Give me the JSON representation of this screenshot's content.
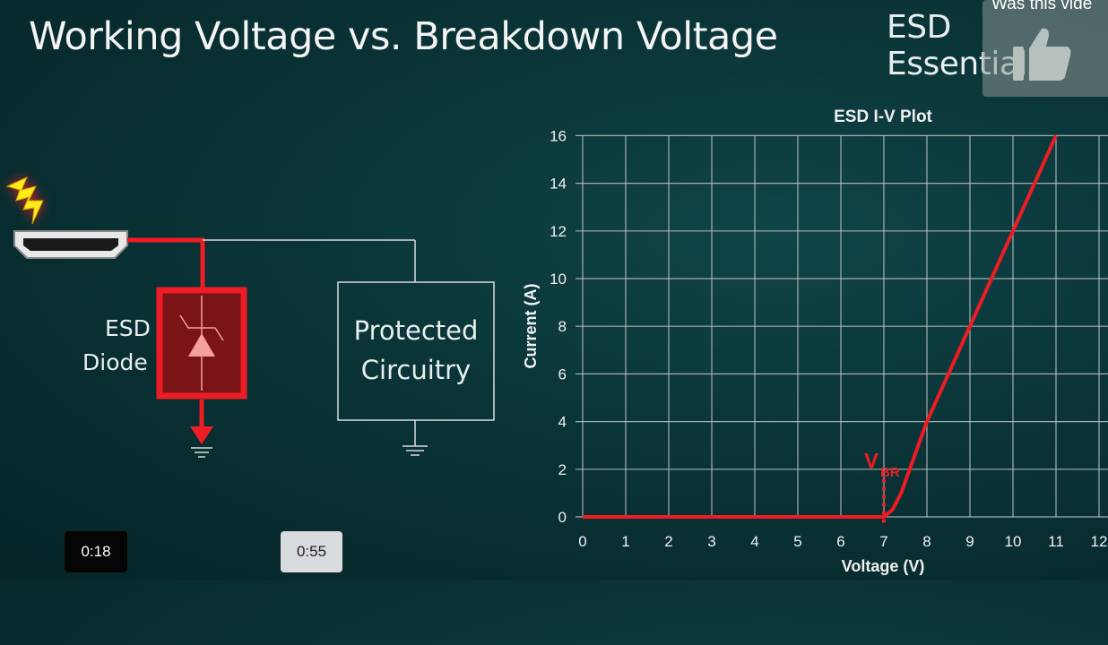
{
  "slide": {
    "title": "Working Voltage vs. Breakdown Voltage",
    "brand": "ESD Essentials",
    "diode_label_line1": "ESD",
    "diode_label_line2": "Diode",
    "protected_line1": "Protected",
    "protected_line2": "Circuitry"
  },
  "player": {
    "feedback_prompt": "Was this vide",
    "feedback_icon": "thumbs-up-icon",
    "time_current": "0:18",
    "time_hover": "0:55"
  },
  "colors": {
    "accent_red": "#ee1c24",
    "background": "#0a3437",
    "grid": "#c8cccc"
  },
  "chart_data": {
    "type": "line",
    "title": "ESD I-V Plot",
    "xlabel": "Voltage (V)",
    "ylabel": "Current (A)",
    "xlim": [
      0,
      12
    ],
    "ylim": [
      0,
      16
    ],
    "xticks": [
      "0",
      "1",
      "2",
      "3",
      "4",
      "5",
      "6",
      "7",
      "8",
      "9",
      "10",
      "11",
      "12"
    ],
    "yticks": [
      "0",
      "2",
      "4",
      "6",
      "8",
      "10",
      "12",
      "14",
      "16"
    ],
    "grid": true,
    "annotation": {
      "text": "V",
      "subscript": "BR",
      "x": 7
    },
    "series": [
      {
        "color": "#ee1c24",
        "x": [
          0,
          7,
          7.2,
          7.4,
          7.7,
          8,
          8.5,
          9,
          10,
          11
        ],
        "y": [
          0,
          0,
          0.3,
          1,
          2.5,
          4,
          6,
          8,
          12,
          16
        ]
      }
    ]
  }
}
